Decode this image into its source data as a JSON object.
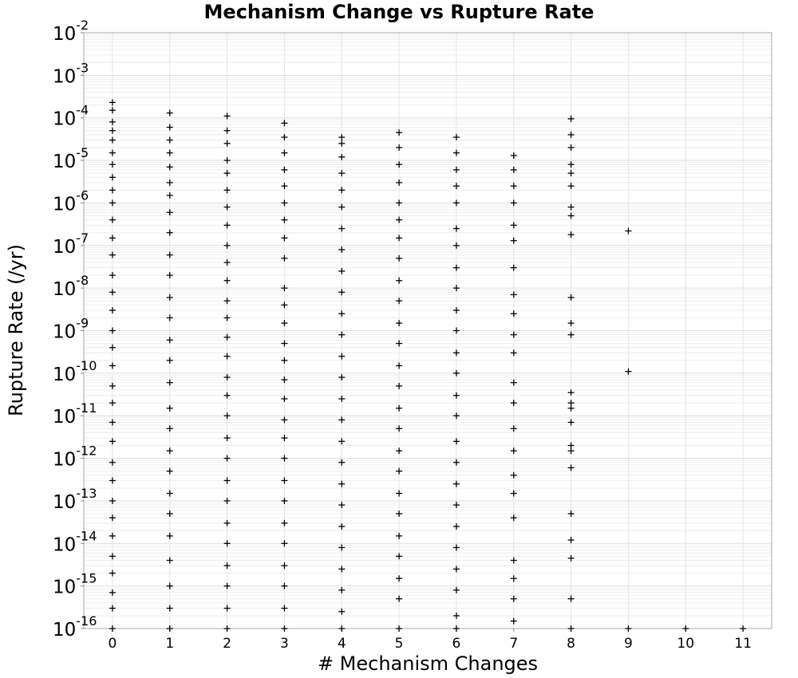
{
  "chart_data": {
    "type": "scatter",
    "title": "Mechanism Change vs Rupture Rate",
    "xlabel": "# Mechanism Changes",
    "ylabel": "Rupture Rate (/yr)",
    "x_scale": "linear",
    "y_scale": "log",
    "xlim": [
      -0.5,
      11.5
    ],
    "ylim": [
      1e-16,
      0.01
    ],
    "x_ticks": [
      0,
      1,
      2,
      3,
      4,
      5,
      6,
      7,
      8,
      9,
      10,
      11
    ],
    "y_ticks": [
      {
        "base": "10",
        "exp": "-16"
      },
      {
        "base": "10",
        "exp": "-15"
      },
      {
        "base": "10",
        "exp": "-14"
      },
      {
        "base": "10",
        "exp": "-13"
      },
      {
        "base": "10",
        "exp": "-12"
      },
      {
        "base": "10",
        "exp": "-11"
      },
      {
        "base": "10",
        "exp": "-10"
      },
      {
        "base": "10",
        "exp": "-9"
      },
      {
        "base": "10",
        "exp": "-8"
      },
      {
        "base": "10",
        "exp": "-7"
      },
      {
        "base": "10",
        "exp": "-6"
      },
      {
        "base": "10",
        "exp": "-5"
      },
      {
        "base": "10",
        "exp": "-4"
      },
      {
        "base": "10",
        "exp": "-3"
      },
      {
        "base": "10",
        "exp": "-2"
      }
    ],
    "grid": true,
    "marker": "+",
    "marker_color": "#000000",
    "series": [
      {
        "values": [
          {
            "x": 0,
            "y": 0.00023
          },
          {
            "x": 0,
            "y": 0.00015
          },
          {
            "x": 0,
            "y": 8e-05
          },
          {
            "x": 0,
            "y": 5e-05
          },
          {
            "x": 0,
            "y": 3e-05
          },
          {
            "x": 0,
            "y": 1.5e-05
          },
          {
            "x": 0,
            "y": 8e-06
          },
          {
            "x": 0,
            "y": 4e-06
          },
          {
            "x": 0,
            "y": 2e-06
          },
          {
            "x": 0,
            "y": 1e-06
          },
          {
            "x": 0,
            "y": 4e-07
          },
          {
            "x": 0,
            "y": 1.5e-07
          },
          {
            "x": 0,
            "y": 6e-08
          },
          {
            "x": 0,
            "y": 2e-08
          },
          {
            "x": 0,
            "y": 8e-09
          },
          {
            "x": 0,
            "y": 3e-09
          },
          {
            "x": 0,
            "y": 1e-09
          },
          {
            "x": 0,
            "y": 4e-10
          },
          {
            "x": 0,
            "y": 1.5e-10
          },
          {
            "x": 0,
            "y": 5e-11
          },
          {
            "x": 0,
            "y": 2e-11
          },
          {
            "x": 0,
            "y": 7e-12
          },
          {
            "x": 0,
            "y": 2.5e-12
          },
          {
            "x": 0,
            "y": 8e-13
          },
          {
            "x": 0,
            "y": 3e-13
          },
          {
            "x": 0,
            "y": 1e-13
          },
          {
            "x": 0,
            "y": 4e-14
          },
          {
            "x": 0,
            "y": 1.5e-14
          },
          {
            "x": 0,
            "y": 5e-15
          },
          {
            "x": 0,
            "y": 2e-15
          },
          {
            "x": 0,
            "y": 7e-16
          },
          {
            "x": 0,
            "y": 3e-16
          },
          {
            "x": 0,
            "y": 1e-16
          },
          {
            "x": 1,
            "y": 0.00013
          },
          {
            "x": 1,
            "y": 6e-05
          },
          {
            "x": 1,
            "y": 3e-05
          },
          {
            "x": 1,
            "y": 1.5e-05
          },
          {
            "x": 1,
            "y": 7e-06
          },
          {
            "x": 1,
            "y": 3e-06
          },
          {
            "x": 1,
            "y": 1.5e-06
          },
          {
            "x": 1,
            "y": 6e-07
          },
          {
            "x": 1,
            "y": 2e-07
          },
          {
            "x": 1,
            "y": 6e-08
          },
          {
            "x": 1,
            "y": 2e-08
          },
          {
            "x": 1,
            "y": 6e-09
          },
          {
            "x": 1,
            "y": 2e-09
          },
          {
            "x": 1,
            "y": 6e-10
          },
          {
            "x": 1,
            "y": 2e-10
          },
          {
            "x": 1,
            "y": 6e-11
          },
          {
            "x": 1,
            "y": 1.5e-11
          },
          {
            "x": 1,
            "y": 5e-12
          },
          {
            "x": 1,
            "y": 1.5e-12
          },
          {
            "x": 1,
            "y": 5e-13
          },
          {
            "x": 1,
            "y": 1.5e-13
          },
          {
            "x": 1,
            "y": 5e-14
          },
          {
            "x": 1,
            "y": 1.5e-14
          },
          {
            "x": 1,
            "y": 4e-15
          },
          {
            "x": 1,
            "y": 1e-15
          },
          {
            "x": 1,
            "y": 3e-16
          },
          {
            "x": 1,
            "y": 1e-16
          },
          {
            "x": 2,
            "y": 0.00011
          },
          {
            "x": 2,
            "y": 5e-05
          },
          {
            "x": 2,
            "y": 2.5e-05
          },
          {
            "x": 2,
            "y": 1e-05
          },
          {
            "x": 2,
            "y": 5e-06
          },
          {
            "x": 2,
            "y": 2e-06
          },
          {
            "x": 2,
            "y": 8e-07
          },
          {
            "x": 2,
            "y": 3e-07
          },
          {
            "x": 2,
            "y": 1e-07
          },
          {
            "x": 2,
            "y": 4e-08
          },
          {
            "x": 2,
            "y": 1.5e-08
          },
          {
            "x": 2,
            "y": 5e-09
          },
          {
            "x": 2,
            "y": 2e-09
          },
          {
            "x": 2,
            "y": 7e-10
          },
          {
            "x": 2,
            "y": 2.5e-10
          },
          {
            "x": 2,
            "y": 8e-11
          },
          {
            "x": 2,
            "y": 3e-11
          },
          {
            "x": 2,
            "y": 1e-11
          },
          {
            "x": 2,
            "y": 3e-12
          },
          {
            "x": 2,
            "y": 1e-12
          },
          {
            "x": 2,
            "y": 3e-13
          },
          {
            "x": 2,
            "y": 1e-13
          },
          {
            "x": 2,
            "y": 3e-14
          },
          {
            "x": 2,
            "y": 1e-14
          },
          {
            "x": 2,
            "y": 3e-15
          },
          {
            "x": 2,
            "y": 1e-15
          },
          {
            "x": 2,
            "y": 3e-16
          },
          {
            "x": 2,
            "y": 1e-16
          },
          {
            "x": 3,
            "y": 7.5e-05
          },
          {
            "x": 3,
            "y": 3.5e-05
          },
          {
            "x": 3,
            "y": 1.5e-05
          },
          {
            "x": 3,
            "y": 6e-06
          },
          {
            "x": 3,
            "y": 2.5e-06
          },
          {
            "x": 3,
            "y": 1e-06
          },
          {
            "x": 3,
            "y": 4e-07
          },
          {
            "x": 3,
            "y": 1.5e-07
          },
          {
            "x": 3,
            "y": 5e-08
          },
          {
            "x": 3,
            "y": 1e-08
          },
          {
            "x": 3,
            "y": 4e-09
          },
          {
            "x": 3,
            "y": 1.5e-09
          },
          {
            "x": 3,
            "y": 5e-10
          },
          {
            "x": 3,
            "y": 2e-10
          },
          {
            "x": 3,
            "y": 7e-11
          },
          {
            "x": 3,
            "y": 2.5e-11
          },
          {
            "x": 3,
            "y": 8e-12
          },
          {
            "x": 3,
            "y": 3e-12
          },
          {
            "x": 3,
            "y": 1e-12
          },
          {
            "x": 3,
            "y": 3e-13
          },
          {
            "x": 3,
            "y": 1e-13
          },
          {
            "x": 3,
            "y": 3e-14
          },
          {
            "x": 3,
            "y": 1e-14
          },
          {
            "x": 3,
            "y": 3e-15
          },
          {
            "x": 3,
            "y": 1e-15
          },
          {
            "x": 3,
            "y": 3e-16
          },
          {
            "x": 3,
            "y": 1e-16
          },
          {
            "x": 4,
            "y": 3.5e-05
          },
          {
            "x": 4,
            "y": 2.5e-05
          },
          {
            "x": 4,
            "y": 1.2e-05
          },
          {
            "x": 4,
            "y": 5e-06
          },
          {
            "x": 4,
            "y": 2e-06
          },
          {
            "x": 4,
            "y": 8e-07
          },
          {
            "x": 4,
            "y": 2.5e-07
          },
          {
            "x": 4,
            "y": 8e-08
          },
          {
            "x": 4,
            "y": 2.5e-08
          },
          {
            "x": 4,
            "y": 8e-09
          },
          {
            "x": 4,
            "y": 2.5e-09
          },
          {
            "x": 4,
            "y": 8e-10
          },
          {
            "x": 4,
            "y": 2.5e-10
          },
          {
            "x": 4,
            "y": 8e-11
          },
          {
            "x": 4,
            "y": 2.5e-11
          },
          {
            "x": 4,
            "y": 8e-12
          },
          {
            "x": 4,
            "y": 2.5e-12
          },
          {
            "x": 4,
            "y": 8e-13
          },
          {
            "x": 4,
            "y": 2.5e-13
          },
          {
            "x": 4,
            "y": 8e-14
          },
          {
            "x": 4,
            "y": 2.5e-14
          },
          {
            "x": 4,
            "y": 8e-15
          },
          {
            "x": 4,
            "y": 2.5e-15
          },
          {
            "x": 4,
            "y": 8e-16
          },
          {
            "x": 4,
            "y": 2.5e-16
          },
          {
            "x": 4,
            "y": 1e-16
          },
          {
            "x": 5,
            "y": 4.5e-05
          },
          {
            "x": 5,
            "y": 2e-05
          },
          {
            "x": 5,
            "y": 8e-06
          },
          {
            "x": 5,
            "y": 3e-06
          },
          {
            "x": 5,
            "y": 1e-06
          },
          {
            "x": 5,
            "y": 4e-07
          },
          {
            "x": 5,
            "y": 1.5e-07
          },
          {
            "x": 5,
            "y": 5e-08
          },
          {
            "x": 5,
            "y": 1.5e-08
          },
          {
            "x": 5,
            "y": 5e-09
          },
          {
            "x": 5,
            "y": 1.5e-09
          },
          {
            "x": 5,
            "y": 5e-10
          },
          {
            "x": 5,
            "y": 1.5e-10
          },
          {
            "x": 5,
            "y": 5e-11
          },
          {
            "x": 5,
            "y": 1.5e-11
          },
          {
            "x": 5,
            "y": 5e-12
          },
          {
            "x": 5,
            "y": 1.5e-12
          },
          {
            "x": 5,
            "y": 5e-13
          },
          {
            "x": 5,
            "y": 1.5e-13
          },
          {
            "x": 5,
            "y": 5e-14
          },
          {
            "x": 5,
            "y": 1.5e-14
          },
          {
            "x": 5,
            "y": 5e-15
          },
          {
            "x": 5,
            "y": 1.5e-15
          },
          {
            "x": 5,
            "y": 5e-16
          },
          {
            "x": 5,
            "y": 1e-16
          },
          {
            "x": 6,
            "y": 3.5e-05
          },
          {
            "x": 6,
            "y": 1.5e-05
          },
          {
            "x": 6,
            "y": 6e-06
          },
          {
            "x": 6,
            "y": 2.5e-06
          },
          {
            "x": 6,
            "y": 1e-06
          },
          {
            "x": 6,
            "y": 2.5e-07
          },
          {
            "x": 6,
            "y": 1e-07
          },
          {
            "x": 6,
            "y": 3e-08
          },
          {
            "x": 6,
            "y": 1e-08
          },
          {
            "x": 6,
            "y": 3e-09
          },
          {
            "x": 6,
            "y": 1e-09
          },
          {
            "x": 6,
            "y": 3e-10
          },
          {
            "x": 6,
            "y": 1e-10
          },
          {
            "x": 6,
            "y": 3e-11
          },
          {
            "x": 6,
            "y": 1e-11
          },
          {
            "x": 6,
            "y": 2.5e-12
          },
          {
            "x": 6,
            "y": 8e-13
          },
          {
            "x": 6,
            "y": 2.5e-13
          },
          {
            "x": 6,
            "y": 8e-14
          },
          {
            "x": 6,
            "y": 2.5e-14
          },
          {
            "x": 6,
            "y": 8e-15
          },
          {
            "x": 6,
            "y": 2.5e-15
          },
          {
            "x": 6,
            "y": 8e-16
          },
          {
            "x": 6,
            "y": 2e-16
          },
          {
            "x": 6,
            "y": 1e-16
          },
          {
            "x": 7,
            "y": 1.3e-05
          },
          {
            "x": 7,
            "y": 6e-06
          },
          {
            "x": 7,
            "y": 2.5e-06
          },
          {
            "x": 7,
            "y": 1e-06
          },
          {
            "x": 7,
            "y": 3e-07
          },
          {
            "x": 7,
            "y": 1.3e-07
          },
          {
            "x": 7,
            "y": 3e-08
          },
          {
            "x": 7,
            "y": 7e-09
          },
          {
            "x": 7,
            "y": 2.5e-09
          },
          {
            "x": 7,
            "y": 8e-10
          },
          {
            "x": 7,
            "y": 3e-10
          },
          {
            "x": 7,
            "y": 6e-11
          },
          {
            "x": 7,
            "y": 2e-11
          },
          {
            "x": 7,
            "y": 5e-12
          },
          {
            "x": 7,
            "y": 1.5e-12
          },
          {
            "x": 7,
            "y": 4e-13
          },
          {
            "x": 7,
            "y": 1.5e-13
          },
          {
            "x": 7,
            "y": 4e-14
          },
          {
            "x": 7,
            "y": 4e-15
          },
          {
            "x": 7,
            "y": 1.5e-15
          },
          {
            "x": 7,
            "y": 5e-16
          },
          {
            "x": 7,
            "y": 1.5e-16
          },
          {
            "x": 8,
            "y": 9.5e-05
          },
          {
            "x": 8,
            "y": 4e-05
          },
          {
            "x": 8,
            "y": 2e-05
          },
          {
            "x": 8,
            "y": 8e-06
          },
          {
            "x": 8,
            "y": 5e-06
          },
          {
            "x": 8,
            "y": 2.5e-06
          },
          {
            "x": 8,
            "y": 8e-07
          },
          {
            "x": 8,
            "y": 5e-07
          },
          {
            "x": 8,
            "y": 1.8e-07
          },
          {
            "x": 8,
            "y": 6e-09
          },
          {
            "x": 8,
            "y": 1.5e-09
          },
          {
            "x": 8,
            "y": 8e-10
          },
          {
            "x": 8,
            "y": 3.5e-11
          },
          {
            "x": 8,
            "y": 2e-11
          },
          {
            "x": 8,
            "y": 1.5e-11
          },
          {
            "x": 8,
            "y": 7e-12
          },
          {
            "x": 8,
            "y": 2e-12
          },
          {
            "x": 8,
            "y": 1.5e-12
          },
          {
            "x": 8,
            "y": 6e-13
          },
          {
            "x": 8,
            "y": 5e-14
          },
          {
            "x": 8,
            "y": 1.2e-14
          },
          {
            "x": 8,
            "y": 4.5e-15
          },
          {
            "x": 8,
            "y": 5e-16
          },
          {
            "x": 8,
            "y": 1e-16
          },
          {
            "x": 9,
            "y": 2.2e-07
          },
          {
            "x": 9,
            "y": 1.1e-10
          },
          {
            "x": 9,
            "y": 1e-16
          },
          {
            "x": 10,
            "y": 1e-16
          },
          {
            "x": 11,
            "y": 1e-16
          }
        ]
      }
    ]
  }
}
